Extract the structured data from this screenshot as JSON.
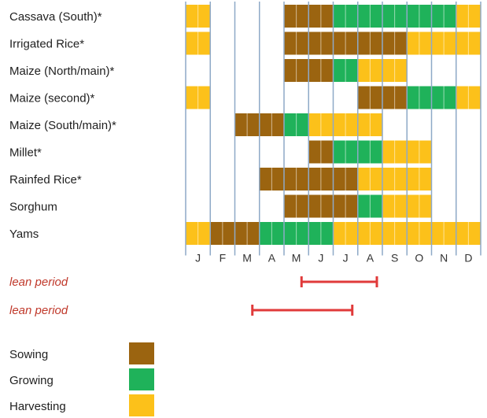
{
  "chart_data": {
    "type": "gantt",
    "title": "",
    "months": [
      "J",
      "F",
      "M",
      "A",
      "M",
      "J",
      "J",
      "A",
      "S",
      "O",
      "N",
      "D"
    ],
    "stage_colors": {
      "sowing": "#9b6410",
      "growing": "#1fb25a",
      "harvesting": "#fcc11a"
    },
    "crops": [
      {
        "label": "Cassava (South)*",
        "segments": [
          {
            "stage": "harvesting",
            "start": 0,
            "end": 1
          },
          {
            "stage": "sowing",
            "start": 4,
            "end": 6
          },
          {
            "stage": "growing",
            "start": 6,
            "end": 11
          },
          {
            "stage": "harvesting",
            "start": 11,
            "end": 12
          }
        ]
      },
      {
        "label": "Irrigated Rice*",
        "segments": [
          {
            "stage": "harvesting",
            "start": 0,
            "end": 1
          },
          {
            "stage": "sowing",
            "start": 4,
            "end": 9
          },
          {
            "stage": "harvesting",
            "start": 9,
            "end": 12
          }
        ]
      },
      {
        "label": "Maize (North/main)*",
        "segments": [
          {
            "stage": "sowing",
            "start": 4,
            "end": 6
          },
          {
            "stage": "growing",
            "start": 6,
            "end": 7
          },
          {
            "stage": "harvesting",
            "start": 7,
            "end": 9
          }
        ]
      },
      {
        "label": "Maize (second)*",
        "segments": [
          {
            "stage": "harvesting",
            "start": 0,
            "end": 1
          },
          {
            "stage": "sowing",
            "start": 7,
            "end": 9
          },
          {
            "stage": "growing",
            "start": 9,
            "end": 11
          },
          {
            "stage": "harvesting",
            "start": 11,
            "end": 12
          }
        ]
      },
      {
        "label": "Maize (South/main)*",
        "segments": [
          {
            "stage": "sowing",
            "start": 2,
            "end": 4
          },
          {
            "stage": "growing",
            "start": 4,
            "end": 5
          },
          {
            "stage": "harvesting",
            "start": 5,
            "end": 8
          }
        ]
      },
      {
        "label": "Millet*",
        "segments": [
          {
            "stage": "sowing",
            "start": 5,
            "end": 6
          },
          {
            "stage": "growing",
            "start": 6,
            "end": 8
          },
          {
            "stage": "harvesting",
            "start": 8,
            "end": 10
          }
        ]
      },
      {
        "label": "Rainfed Rice*",
        "segments": [
          {
            "stage": "sowing",
            "start": 3,
            "end": 7
          },
          {
            "stage": "harvesting",
            "start": 7,
            "end": 10
          }
        ]
      },
      {
        "label": "Sorghum",
        "segments": [
          {
            "stage": "sowing",
            "start": 4,
            "end": 7
          },
          {
            "stage": "growing",
            "start": 7,
            "end": 8
          },
          {
            "stage": "harvesting",
            "start": 8,
            "end": 10
          }
        ]
      },
      {
        "label": "Yams",
        "segments": [
          {
            "stage": "harvesting",
            "start": 0,
            "end": 1
          },
          {
            "stage": "sowing",
            "start": 1,
            "end": 3
          },
          {
            "stage": "growing",
            "start": 3,
            "end": 6
          },
          {
            "stage": "harvesting",
            "start": 6,
            "end": 12
          }
        ]
      }
    ],
    "lean_periods": [
      {
        "label": "lean period",
        "start_month": 5,
        "end_month": 8
      },
      {
        "label": "lean period",
        "start_month": 3,
        "end_month": 7
      }
    ],
    "lean_color": "#e03a3a",
    "legend": [
      {
        "label": "Sowing",
        "stage": "sowing"
      },
      {
        "label": "Growing",
        "stage": "growing"
      },
      {
        "label": "Harvesting",
        "stage": "harvesting"
      }
    ]
  }
}
